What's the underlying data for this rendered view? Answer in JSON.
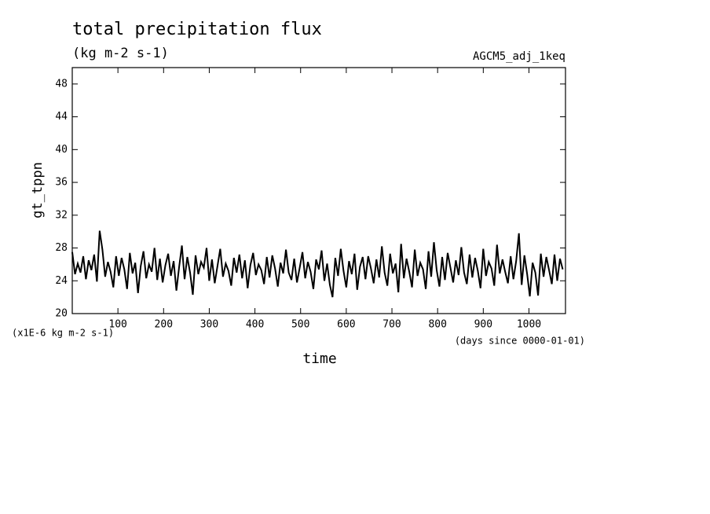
{
  "chart_data": {
    "type": "line",
    "title": "total precipitation flux",
    "subtitle": "(kg m-2 s-1)",
    "annotation": "AGCM5_adj_1keq",
    "ylabel": "gt_tppn",
    "xlabel": "time",
    "yunit": "(x1E-6 kg m-2 s-1)",
    "xunit": "(days since 0000-01-01)",
    "color": "#000000",
    "xlim": [
      0,
      1080
    ],
    "ylim": [
      20,
      50
    ],
    "xticks": [
      100,
      200,
      300,
      400,
      500,
      600,
      700,
      800,
      900,
      1000
    ],
    "yticks": [
      20,
      24,
      28,
      32,
      36,
      40,
      44,
      48
    ],
    "x": [
      0,
      6,
      12,
      18,
      24,
      30,
      36,
      42,
      48,
      54,
      60,
      66,
      72,
      78,
      84,
      90,
      96,
      102,
      108,
      114,
      120,
      126,
      132,
      138,
      144,
      150,
      156,
      162,
      168,
      174,
      180,
      186,
      192,
      198,
      204,
      210,
      216,
      222,
      228,
      234,
      240,
      246,
      252,
      258,
      264,
      270,
      276,
      282,
      288,
      294,
      300,
      306,
      312,
      318,
      324,
      330,
      336,
      342,
      348,
      354,
      360,
      366,
      372,
      378,
      384,
      390,
      396,
      402,
      408,
      414,
      420,
      426,
      432,
      438,
      444,
      450,
      456,
      462,
      468,
      474,
      480,
      486,
      492,
      498,
      504,
      510,
      516,
      522,
      528,
      534,
      540,
      546,
      552,
      558,
      564,
      570,
      576,
      582,
      588,
      594,
      600,
      606,
      612,
      618,
      624,
      630,
      636,
      642,
      648,
      654,
      660,
      666,
      672,
      678,
      684,
      690,
      696,
      702,
      708,
      714,
      720,
      726,
      732,
      738,
      744,
      750,
      756,
      762,
      768,
      774,
      780,
      786,
      792,
      798,
      804,
      810,
      816,
      822,
      828,
      834,
      840,
      846,
      852,
      858,
      864,
      870,
      876,
      882,
      888,
      894,
      900,
      906,
      912,
      918,
      924,
      930,
      936,
      942,
      948,
      954,
      960,
      966,
      972,
      978,
      984,
      990,
      996,
      1002,
      1008,
      1014,
      1020,
      1026,
      1032,
      1038,
      1044,
      1050,
      1056,
      1062,
      1068,
      1074
    ],
    "values": [
      27.5,
      24.8,
      26.1,
      25.0,
      27.0,
      24.2,
      26.5,
      25.3,
      27.2,
      23.9,
      30.1,
      27.8,
      24.5,
      26.3,
      25.1,
      23.2,
      27.0,
      24.6,
      26.8,
      25.4,
      23.0,
      27.4,
      24.9,
      26.2,
      22.5,
      25.8,
      27.6,
      24.3,
      26.0,
      25.1,
      28.0,
      24.1,
      26.7,
      23.8,
      25.9,
      27.3,
      24.6,
      26.4,
      22.8,
      25.7,
      28.3,
      24.2,
      26.9,
      25.0,
      22.3,
      27.1,
      24.8,
      26.3,
      25.6,
      28.0,
      24.0,
      26.6,
      23.7,
      25.8,
      27.9,
      24.5,
      26.1,
      25.2,
      23.4,
      26.8,
      25.0,
      27.2,
      24.3,
      26.5,
      23.1,
      25.9,
      27.4,
      24.7,
      26.0,
      25.3,
      23.6,
      26.9,
      24.4,
      27.1,
      25.5,
      23.3,
      26.2,
      24.9,
      27.8,
      25.0,
      24.1,
      26.7,
      23.8,
      25.6,
      27.5,
      24.3,
      26.3,
      25.1,
      23.0,
      26.6,
      25.4,
      27.7,
      24.0,
      26.1,
      23.5,
      22.0,
      26.8,
      24.6,
      27.9,
      25.2,
      23.2,
      26.4,
      24.8,
      27.3,
      22.9,
      25.7,
      26.9,
      24.2,
      27.0,
      25.5,
      23.7,
      26.6,
      24.4,
      28.2,
      25.0,
      23.4,
      27.3,
      24.9,
      26.1,
      22.6,
      28.5,
      24.3,
      26.7,
      25.1,
      23.2,
      27.8,
      24.6,
      26.2,
      25.4,
      23.0,
      27.6,
      24.5,
      28.7,
      25.3,
      23.3,
      26.9,
      24.1,
      27.4,
      25.6,
      23.8,
      26.5,
      24.7,
      28.1,
      25.0,
      23.6,
      27.2,
      24.4,
      26.8,
      25.2,
      23.1,
      27.9,
      24.6,
      26.3,
      25.5,
      23.4,
      28.4,
      24.9,
      26.6,
      25.1,
      23.7,
      27.0,
      24.2,
      26.4,
      29.8,
      23.5,
      27.1,
      24.8,
      22.1,
      26.2,
      25.0,
      22.2,
      27.3,
      24.5,
      26.9,
      25.3,
      23.6,
      27.2,
      24.0,
      26.7,
      25.4
    ]
  }
}
